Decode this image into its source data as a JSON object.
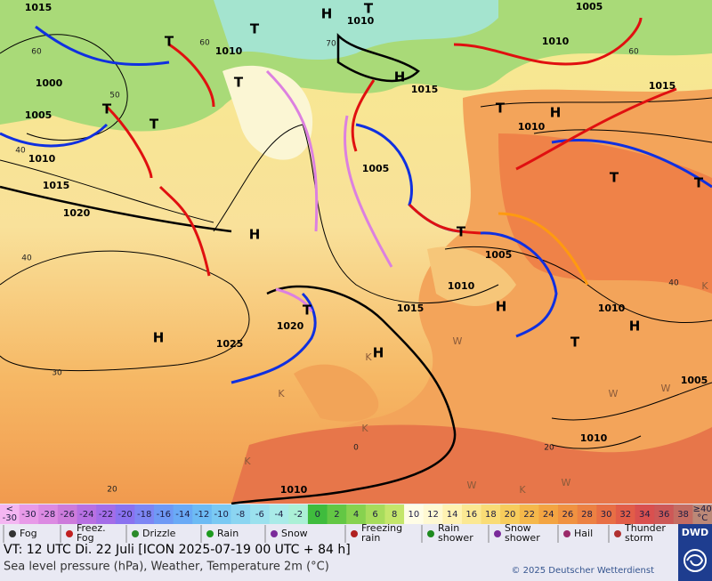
{
  "map": {
    "isobar_labels": [
      "1015",
      "1010",
      "1005",
      "1010",
      "1015",
      "1010",
      "1000",
      "1005",
      "1010",
      "1015",
      "1020",
      "1015",
      "1010",
      "1005",
      "1005",
      "1010",
      "1015",
      "1010",
      "1020",
      "1025",
      "1005",
      "1010",
      "1010"
    ],
    "pressure_centers": [
      "H",
      "H",
      "H",
      "H",
      "H",
      "H",
      "H",
      "H",
      "T",
      "T",
      "T",
      "T",
      "T",
      "T",
      "T",
      "T",
      "T",
      "T",
      "T",
      "T"
    ],
    "grid_labels": [
      "60",
      "50",
      "40",
      "40",
      "30",
      "20",
      "0",
      "20",
      "40",
      "60",
      "70",
      "60"
    ],
    "weather_letters": [
      "W",
      "W",
      "W",
      "W",
      "W",
      "K",
      "K",
      "K",
      "K",
      "K",
      "K"
    ]
  },
  "temperature_scale": {
    "labels": [
      [
        "<",
        "-30"
      ],
      "-30",
      "-28",
      "-26",
      "-24",
      "-22",
      "-20",
      "-18",
      "-16",
      "-14",
      "-12",
      "-10",
      "-8",
      "-6",
      "-4",
      "-2",
      "0",
      "2",
      "4",
      "6",
      "8",
      "10",
      "12",
      "14",
      "16",
      "18",
      "20",
      "22",
      "24",
      "26",
      "28",
      "30",
      "32",
      "34",
      "36",
      "38",
      [
        "≥40",
        "°C"
      ]
    ],
    "colors": [
      "#f4b6f2",
      "#e89ae8",
      "#dc8ae2",
      "#cd7bdb",
      "#b870e2",
      "#a46de8",
      "#8a72f0",
      "#7d86f4",
      "#6f99f5",
      "#6aaaf6",
      "#6dbbf4",
      "#7ac9f3",
      "#8bd5f1",
      "#9be1ee",
      "#a9ebe8",
      "#abf0d6",
      "#3fbc3d",
      "#63c744",
      "#87d24f",
      "#a7dc5c",
      "#c4e66b",
      "#fffde6",
      "#fff9d2",
      "#fff2b2",
      "#fbe893",
      "#f9dc76",
      "#f7cc5c",
      "#f5b84b",
      "#f3a442",
      "#f09241",
      "#ec8143",
      "#e86f45",
      "#e25d48",
      "#d9504f",
      "#cd5857",
      "#c46c62",
      "#bb8877"
    ]
  },
  "legend": [
    [
      "Fog"
    ],
    [
      "Freez.",
      "Fog"
    ],
    [
      "Drizzle"
    ],
    [
      "Rain"
    ],
    [
      "Snow"
    ],
    [
      "Freezing",
      "rain"
    ],
    [
      "Rain",
      "shower"
    ],
    [
      "Snow",
      "shower"
    ],
    [
      "Hail"
    ],
    [
      "Thunder",
      "storm"
    ]
  ],
  "footer": {
    "valid_time": "VT: 12 UTC Di.  22 Juli [ICON 2025-07-19  00 UTC + 84 h]",
    "description": "Sea level pressure (hPa), Weather, Temperature 2m (°C)",
    "copyright": "© 2025 Deutscher Wetterdienst",
    "logo": "DWD"
  }
}
